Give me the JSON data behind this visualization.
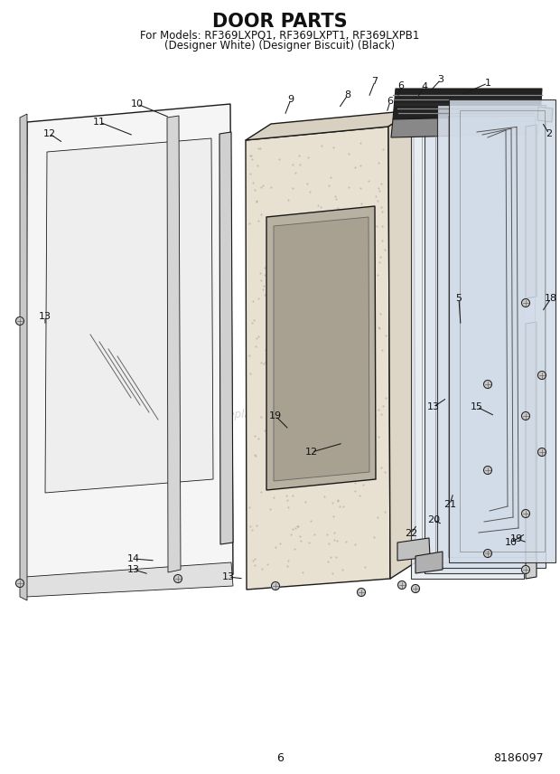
{
  "title": "DOOR PARTS",
  "subtitle1": "For Models: RF369LXPQ1, RF369LXPT1, RF369LXPB1",
  "subtitle2": "(Designer White) (Designer Biscuit) (Black)",
  "page_number": "6",
  "doc_number": "8186097",
  "background_color": "#ffffff",
  "watermark": "eReplacementParts.com",
  "title_fontsize": 15,
  "subtitle_fontsize": 8.5,
  "line_color": "#1a1a1a",
  "lw_main": 1.0,
  "lw_thin": 0.6,
  "label_fs": 8,
  "leader_color": "#1a1a1a"
}
